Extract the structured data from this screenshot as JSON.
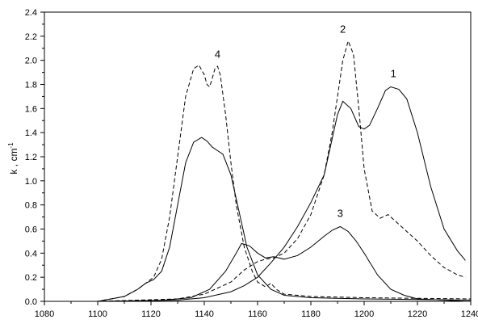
{
  "chart_data": {
    "type": "line",
    "xlabel": "",
    "ylabel": "k , cm",
    "ylabel_superscript": "-1",
    "xlim": [
      1080,
      1240
    ],
    "ylim": [
      0.0,
      2.4
    ],
    "x_ticks": [
      "1080",
      "1100",
      "1120",
      "1140",
      "1160",
      "1180",
      "1200",
      "1220",
      "1240"
    ],
    "y_ticks": [
      "0.0",
      "0.2",
      "0.4",
      "0.6",
      "0.8",
      "1.0",
      "1.2",
      "1.4",
      "1.6",
      "1.8",
      "2.0",
      "2.2",
      "2.4"
    ],
    "grid": false,
    "series": [
      {
        "name": "1",
        "style": "solid",
        "label_at": [
          1211,
          1.86
        ],
        "x": [
          1080,
          1100,
          1130,
          1140,
          1150,
          1155,
          1160,
          1165,
          1170,
          1175,
          1180,
          1185,
          1188,
          1190,
          1192,
          1195,
          1198,
          1200,
          1202,
          1205,
          1208,
          1210,
          1213,
          1216,
          1220,
          1225,
          1230,
          1235,
          1238
        ],
        "y": [
          0.0,
          0.0,
          0.01,
          0.03,
          0.08,
          0.13,
          0.2,
          0.32,
          0.45,
          0.62,
          0.82,
          1.05,
          1.35,
          1.55,
          1.66,
          1.6,
          1.45,
          1.43,
          1.46,
          1.6,
          1.75,
          1.78,
          1.76,
          1.68,
          1.4,
          0.95,
          0.6,
          0.42,
          0.34
        ]
      },
      {
        "name": "2",
        "style": "dashed",
        "label_at": [
          1192,
          2.23
        ],
        "x": [
          1080,
          1100,
          1130,
          1140,
          1150,
          1155,
          1160,
          1163,
          1166,
          1170,
          1175,
          1180,
          1185,
          1188,
          1190,
          1192,
          1194,
          1196,
          1198,
          1200,
          1203,
          1206,
          1209,
          1211,
          1215,
          1220,
          1225,
          1230,
          1235,
          1238
        ],
        "y": [
          0.0,
          0.0,
          0.02,
          0.06,
          0.16,
          0.26,
          0.33,
          0.35,
          0.36,
          0.4,
          0.52,
          0.72,
          1.05,
          1.4,
          1.7,
          2.0,
          2.16,
          2.05,
          1.6,
          1.1,
          0.75,
          0.69,
          0.72,
          0.68,
          0.6,
          0.5,
          0.38,
          0.28,
          0.22,
          0.2
        ]
      },
      {
        "name": "3",
        "style": "solid",
        "label_at": [
          1191,
          0.7
        ],
        "x": [
          1080,
          1120,
          1135,
          1142,
          1148,
          1152,
          1154,
          1157,
          1160,
          1163,
          1166,
          1170,
          1175,
          1180,
          1185,
          1188,
          1191,
          1194,
          1197,
          1200,
          1205,
          1210,
          1215,
          1220,
          1230,
          1238
        ],
        "y": [
          0.0,
          0.0,
          0.03,
          0.1,
          0.25,
          0.4,
          0.48,
          0.46,
          0.4,
          0.36,
          0.37,
          0.35,
          0.38,
          0.45,
          0.54,
          0.59,
          0.62,
          0.58,
          0.5,
          0.4,
          0.22,
          0.1,
          0.05,
          0.02,
          0.01,
          0.0
        ]
      },
      {
        "name": "4",
        "style": "dashed",
        "label_at": [
          1145,
          2.02
        ],
        "x": [
          1080,
          1100,
          1110,
          1115,
          1118,
          1121,
          1124,
          1127,
          1130,
          1133,
          1136,
          1138,
          1140,
          1141,
          1142,
          1143,
          1144,
          1145,
          1146,
          1148,
          1150,
          1152,
          1155,
          1158,
          1160,
          1163,
          1165,
          1167,
          1170,
          1175,
          1180,
          1200,
          1240
        ],
        "y": [
          0.0,
          0.0,
          0.04,
          0.1,
          0.15,
          0.2,
          0.35,
          0.7,
          1.2,
          1.7,
          1.93,
          1.96,
          1.88,
          1.8,
          1.78,
          1.85,
          1.93,
          1.95,
          1.88,
          1.55,
          1.15,
          0.8,
          0.45,
          0.25,
          0.16,
          0.12,
          0.15,
          0.1,
          0.06,
          0.05,
          0.04,
          0.03,
          0.02
        ]
      },
      {
        "name": "",
        "style": "solid",
        "label_at": null,
        "x": [
          1080,
          1100,
          1110,
          1115,
          1118,
          1121,
          1124,
          1127,
          1130,
          1133,
          1136,
          1139,
          1141,
          1143,
          1145,
          1147,
          1150,
          1153,
          1156,
          1160,
          1165,
          1170,
          1180,
          1200,
          1240
        ],
        "y": [
          0.0,
          0.0,
          0.04,
          0.1,
          0.15,
          0.18,
          0.25,
          0.45,
          0.8,
          1.15,
          1.32,
          1.36,
          1.33,
          1.28,
          1.25,
          1.22,
          1.05,
          0.75,
          0.45,
          0.22,
          0.1,
          0.05,
          0.03,
          0.02,
          0.01
        ]
      }
    ]
  }
}
